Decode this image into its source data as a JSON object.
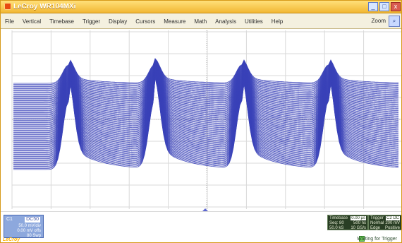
{
  "titlebar": {
    "title": "LeCroy WR104MXi"
  },
  "menu": {
    "items": [
      "File",
      "Vertical",
      "Timebase",
      "Trigger",
      "Display",
      "Cursors",
      "Measure",
      "Math",
      "Analysis",
      "Utilities",
      "Help"
    ],
    "zoom_label": "Zoom"
  },
  "status": {
    "channel": {
      "title": "C1",
      "coupling": "DC50",
      "line1": "50.0 mV/div",
      "line2": "0.00 mV offs",
      "line3": "80 Swp"
    },
    "timebase": {
      "title": "Timebase",
      "title_value": "0.00 µs",
      "row1_left": "Seq: 80",
      "row1_right": "500 ns",
      "row2_left": "50.0 kS",
      "row2_right": "10 GS/s"
    },
    "trigger": {
      "title": "Trigger",
      "title_value": "C2 DC",
      "row1_left": "Normal",
      "row1_right": "200 mV",
      "row2_left": "Edge",
      "row2_right": "Positive"
    },
    "waiting": "Waiting for Trigger",
    "brand": "LeCroy"
  },
  "display": {
    "trace_color": "#3a42b8",
    "grid_color": "#d9d9d9"
  }
}
